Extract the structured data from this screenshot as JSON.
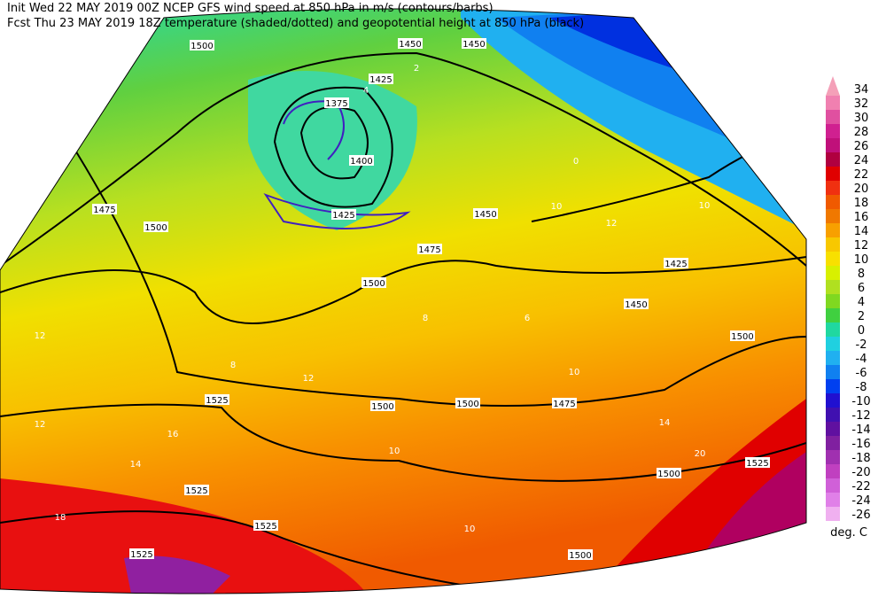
{
  "header": {
    "line1": "Init  Wed 22 MAY 2019 00Z  NCEP GFS wind speed at 850 hPa in m/s (contours/barbs)",
    "line2": "Fcst Thu 23 MAY 2019 18Z  temperature (shaded/dotted) and geopotential height at 850 hPa (black)"
  },
  "colorbar": {
    "unit": "deg. C",
    "levels": [
      34,
      32,
      30,
      28,
      26,
      24,
      22,
      20,
      18,
      16,
      14,
      12,
      10,
      8,
      6,
      4,
      2,
      0,
      -2,
      -4,
      -6,
      -8,
      -10,
      -12,
      -14,
      -16,
      -18,
      -20,
      -22,
      -24,
      -26
    ],
    "colors": [
      "#f4a0b8",
      "#f080b0",
      "#e050a0",
      "#d02090",
      "#c0107a",
      "#b00040",
      "#e00000",
      "#f03010",
      "#f05a00",
      "#f07800",
      "#f8a000",
      "#f8c800",
      "#f8e000",
      "#d8f000",
      "#b0e020",
      "#80d820",
      "#40d040",
      "#20d8a0",
      "#20d0e0",
      "#20b0f0",
      "#1080f0",
      "#0040f0",
      "#2010d0",
      "#4010b0",
      "#6010a0",
      "#8020a0",
      "#a030b0",
      "#c040c0",
      "#d060d8",
      "#e080e8",
      "#f0b0f0"
    ]
  },
  "map": {
    "height_labels": [
      1500,
      1450,
      1450,
      1425,
      1375,
      1400,
      1425,
      1475,
      1500,
      1450,
      1475,
      1500,
      1425,
      1450,
      1500,
      1500,
      1500,
      1475,
      1525,
      1525,
      1525,
      1525,
      1525,
      1500,
      1500
    ],
    "temperature_labels": [
      12,
      12,
      14,
      16,
      18,
      8,
      12,
      10,
      10,
      14,
      20,
      10,
      12,
      10,
      8,
      10,
      6,
      4,
      2,
      0
    ]
  }
}
